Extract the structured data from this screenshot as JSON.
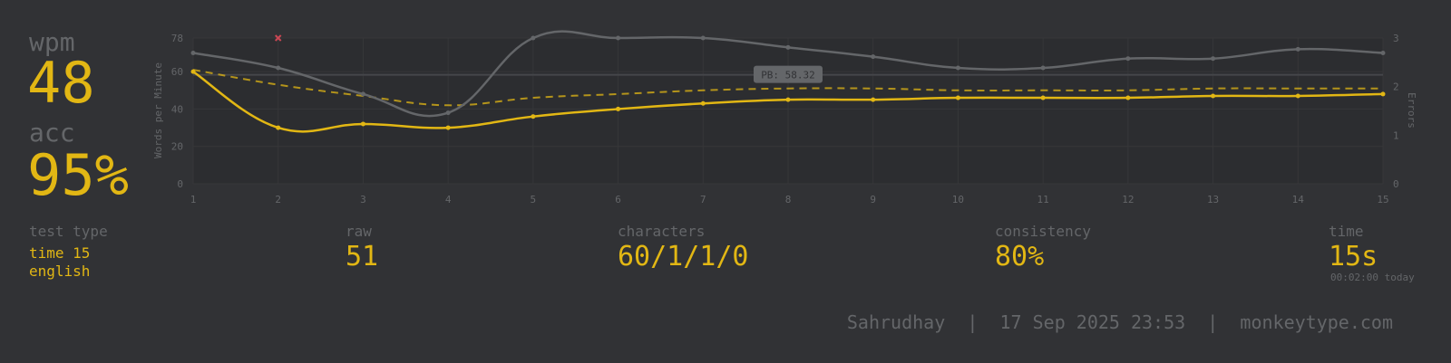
{
  "stats": {
    "wpm_label": "wpm",
    "wpm_value": "48",
    "acc_label": "acc",
    "acc_value": "95%",
    "test_type_label": "test type",
    "test_type_mode": "time 15",
    "test_type_language": "english",
    "raw_label": "raw",
    "raw_value": "51",
    "characters_label": "characters",
    "characters_value": "60/1/1/0",
    "consistency_label": "consistency",
    "consistency_value": "80%",
    "time_label": "time",
    "time_value": "15s",
    "time_sub": "00:02:00 today"
  },
  "footer": {
    "user": "Sahrudhay",
    "datetime": "17 Sep 2025 23:53",
    "site": "monkeytype.com",
    "separator": "|"
  },
  "colors": {
    "background": "#313235",
    "accent": "#e2b714",
    "sub": "#646669",
    "error": "#ca4754"
  },
  "chart_data": {
    "type": "line",
    "x": [
      1,
      2,
      3,
      4,
      5,
      6,
      7,
      8,
      9,
      10,
      11,
      12,
      13,
      14,
      15
    ],
    "ylabel": "Words per Minute",
    "y2label": "Errors",
    "ylim": [
      0,
      78
    ],
    "yticks": [
      0,
      20,
      40,
      60,
      78
    ],
    "y2lim": [
      0,
      3
    ],
    "y2ticks": [
      0,
      1,
      2,
      3
    ],
    "grid": true,
    "series": [
      {
        "key": "raw",
        "color": "#646669",
        "values": [
          70,
          62,
          48,
          38,
          78,
          78,
          78,
          73,
          68,
          62,
          62,
          67,
          67,
          72,
          70
        ]
      },
      {
        "key": "wpm",
        "color": "#e2b714",
        "values": [
          60,
          30,
          32,
          30,
          36,
          40,
          43,
          45,
          45,
          46,
          46,
          46,
          47,
          47,
          48
        ]
      },
      {
        "key": "burst_avg",
        "color": "#e2b714",
        "dashed": true,
        "values": [
          61,
          53,
          47,
          42,
          46,
          48,
          50,
          51,
          51,
          50,
          50,
          50,
          51,
          51,
          51
        ]
      }
    ],
    "errors": [
      {
        "x": 2,
        "count": 3
      }
    ],
    "pb_annotation": {
      "text": "PB: 58.32",
      "y": 58.32
    }
  }
}
